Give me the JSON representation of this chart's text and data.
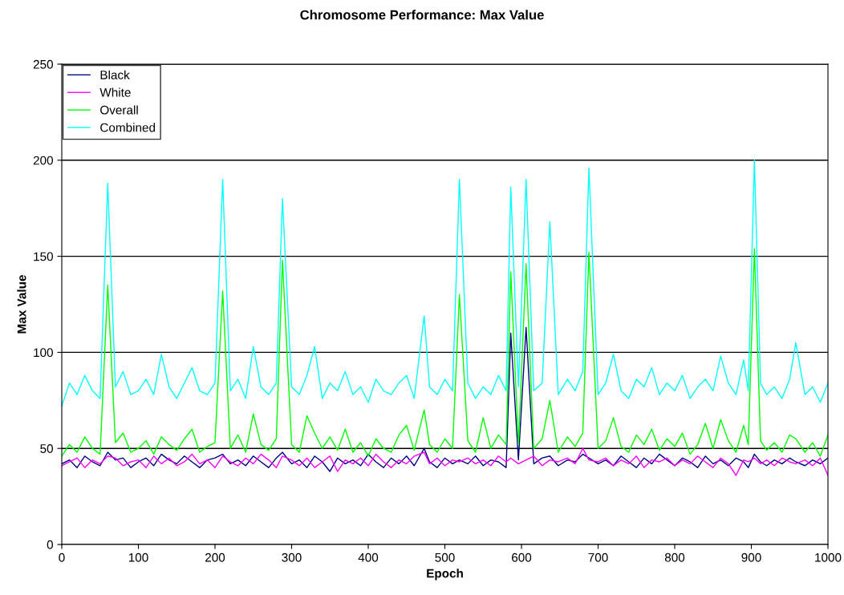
{
  "chart_data": {
    "type": "line",
    "title": "Chromosome Performance: Max Value",
    "xlabel": "Epoch",
    "ylabel": "Max Value",
    "x": [
      0,
      10,
      20,
      30,
      40,
      50,
      60,
      70,
      80,
      90,
      100,
      110,
      120,
      130,
      140,
      150,
      160,
      170,
      180,
      190,
      200,
      210,
      220,
      230,
      240,
      250,
      260,
      270,
      280,
      288,
      300,
      310,
      320,
      330,
      340,
      350,
      360,
      370,
      380,
      390,
      400,
      410,
      420,
      430,
      440,
      450,
      460,
      473,
      480,
      490,
      500,
      510,
      519,
      530,
      540,
      550,
      560,
      570,
      580,
      586,
      596,
      606,
      616,
      627,
      637,
      648,
      660,
      670,
      680,
      688,
      700,
      710,
      720,
      730,
      740,
      750,
      760,
      770,
      780,
      790,
      800,
      810,
      820,
      830,
      840,
      850,
      860,
      870,
      880,
      890,
      896,
      904,
      912,
      920,
      930,
      940,
      950,
      958,
      970,
      980,
      990,
      1000
    ],
    "series": [
      {
        "name": "Black",
        "color": "#000080",
        "values": [
          42,
          44,
          40,
          46,
          43,
          41,
          48,
          44,
          45,
          40,
          43,
          45,
          41,
          47,
          44,
          42,
          46,
          43,
          40,
          44,
          45,
          47,
          42,
          44,
          41,
          46,
          43,
          40,
          45,
          48,
          42,
          44,
          40,
          46,
          43,
          38,
          45,
          42,
          44,
          41,
          47,
          43,
          40,
          45,
          42,
          46,
          41,
          50,
          43,
          40,
          45,
          42,
          44,
          42,
          46,
          41,
          44,
          43,
          40,
          110,
          44,
          113,
          42,
          45,
          46,
          41,
          44,
          43,
          47,
          45,
          42,
          44,
          41,
          46,
          43,
          40,
          45,
          42,
          47,
          44,
          41,
          45,
          43,
          40,
          46,
          42,
          44,
          41,
          45,
          43,
          40,
          47,
          43,
          41,
          44,
          42,
          45,
          43,
          41,
          44,
          42,
          45
        ]
      },
      {
        "name": "White",
        "color": "#ff00ff",
        "values": [
          41,
          43,
          45,
          40,
          44,
          42,
          46,
          45,
          41,
          43,
          44,
          40,
          46,
          42,
          45,
          41,
          43,
          47,
          42,
          44,
          40,
          46,
          43,
          41,
          45,
          42,
          47,
          44,
          40,
          46,
          44,
          41,
          45,
          40,
          43,
          46,
          38,
          44,
          42,
          45,
          41,
          47,
          43,
          40,
          44,
          42,
          46,
          48,
          42,
          45,
          41,
          44,
          43,
          45,
          42,
          44,
          41,
          46,
          43,
          45,
          42,
          44,
          46,
          41,
          44,
          43,
          45,
          42,
          50,
          44,
          43,
          45,
          41,
          44,
          42,
          46,
          40,
          44,
          43,
          45,
          41,
          44,
          42,
          46,
          43,
          40,
          45,
          42,
          36,
          44,
          43,
          45,
          42,
          44,
          41,
          45,
          43,
          42,
          44,
          41,
          45,
          36
        ]
      },
      {
        "name": "Overall",
        "color": "#00ff00",
        "values": [
          46,
          52,
          48,
          56,
          50,
          47,
          135,
          53,
          58,
          48,
          50,
          54,
          47,
          56,
          52,
          49,
          55,
          60,
          48,
          51,
          53,
          132,
          50,
          57,
          48,
          68,
          52,
          49,
          55,
          148,
          52,
          48,
          67,
          58,
          50,
          56,
          49,
          60,
          48,
          53,
          46,
          55,
          50,
          48,
          57,
          62,
          49,
          70,
          52,
          48,
          55,
          50,
          130,
          54,
          48,
          66,
          50,
          57,
          52,
          142,
          52,
          146,
          50,
          55,
          75,
          48,
          56,
          51,
          58,
          152,
          50,
          54,
          66,
          51,
          48,
          57,
          52,
          60,
          49,
          55,
          51,
          58,
          47,
          52,
          63,
          50,
          65,
          54,
          48,
          62,
          52,
          154,
          54,
          49,
          53,
          48,
          57,
          55,
          48,
          53,
          46,
          57
        ]
      },
      {
        "name": "Combined",
        "color": "#00ffff",
        "values": [
          72,
          84,
          78,
          88,
          80,
          76,
          188,
          82,
          90,
          78,
          80,
          86,
          78,
          99,
          82,
          76,
          84,
          92,
          80,
          78,
          84,
          190,
          80,
          86,
          76,
          103,
          82,
          78,
          84,
          180,
          82,
          78,
          88,
          103,
          76,
          84,
          80,
          90,
          78,
          82,
          74,
          86,
          80,
          78,
          84,
          88,
          76,
          119,
          82,
          78,
          86,
          80,
          190,
          84,
          76,
          82,
          78,
          88,
          80,
          186,
          82,
          190,
          80,
          84,
          168,
          78,
          86,
          80,
          90,
          196,
          78,
          84,
          99,
          80,
          76,
          86,
          82,
          92,
          78,
          84,
          80,
          88,
          76,
          82,
          86,
          80,
          98,
          84,
          78,
          96,
          80,
          200,
          84,
          78,
          82,
          76,
          86,
          105,
          78,
          82,
          74,
          84
        ]
      }
    ],
    "xlim": [
      0,
      1000
    ],
    "xticks": [
      0,
      100,
      200,
      300,
      400,
      500,
      600,
      700,
      800,
      900,
      1000
    ],
    "ylim": [
      0,
      250
    ],
    "yticks": [
      0,
      50,
      100,
      150,
      200,
      250
    ],
    "grid": "y",
    "legend": "top left",
    "marker": "none",
    "line_style": "solid"
  }
}
